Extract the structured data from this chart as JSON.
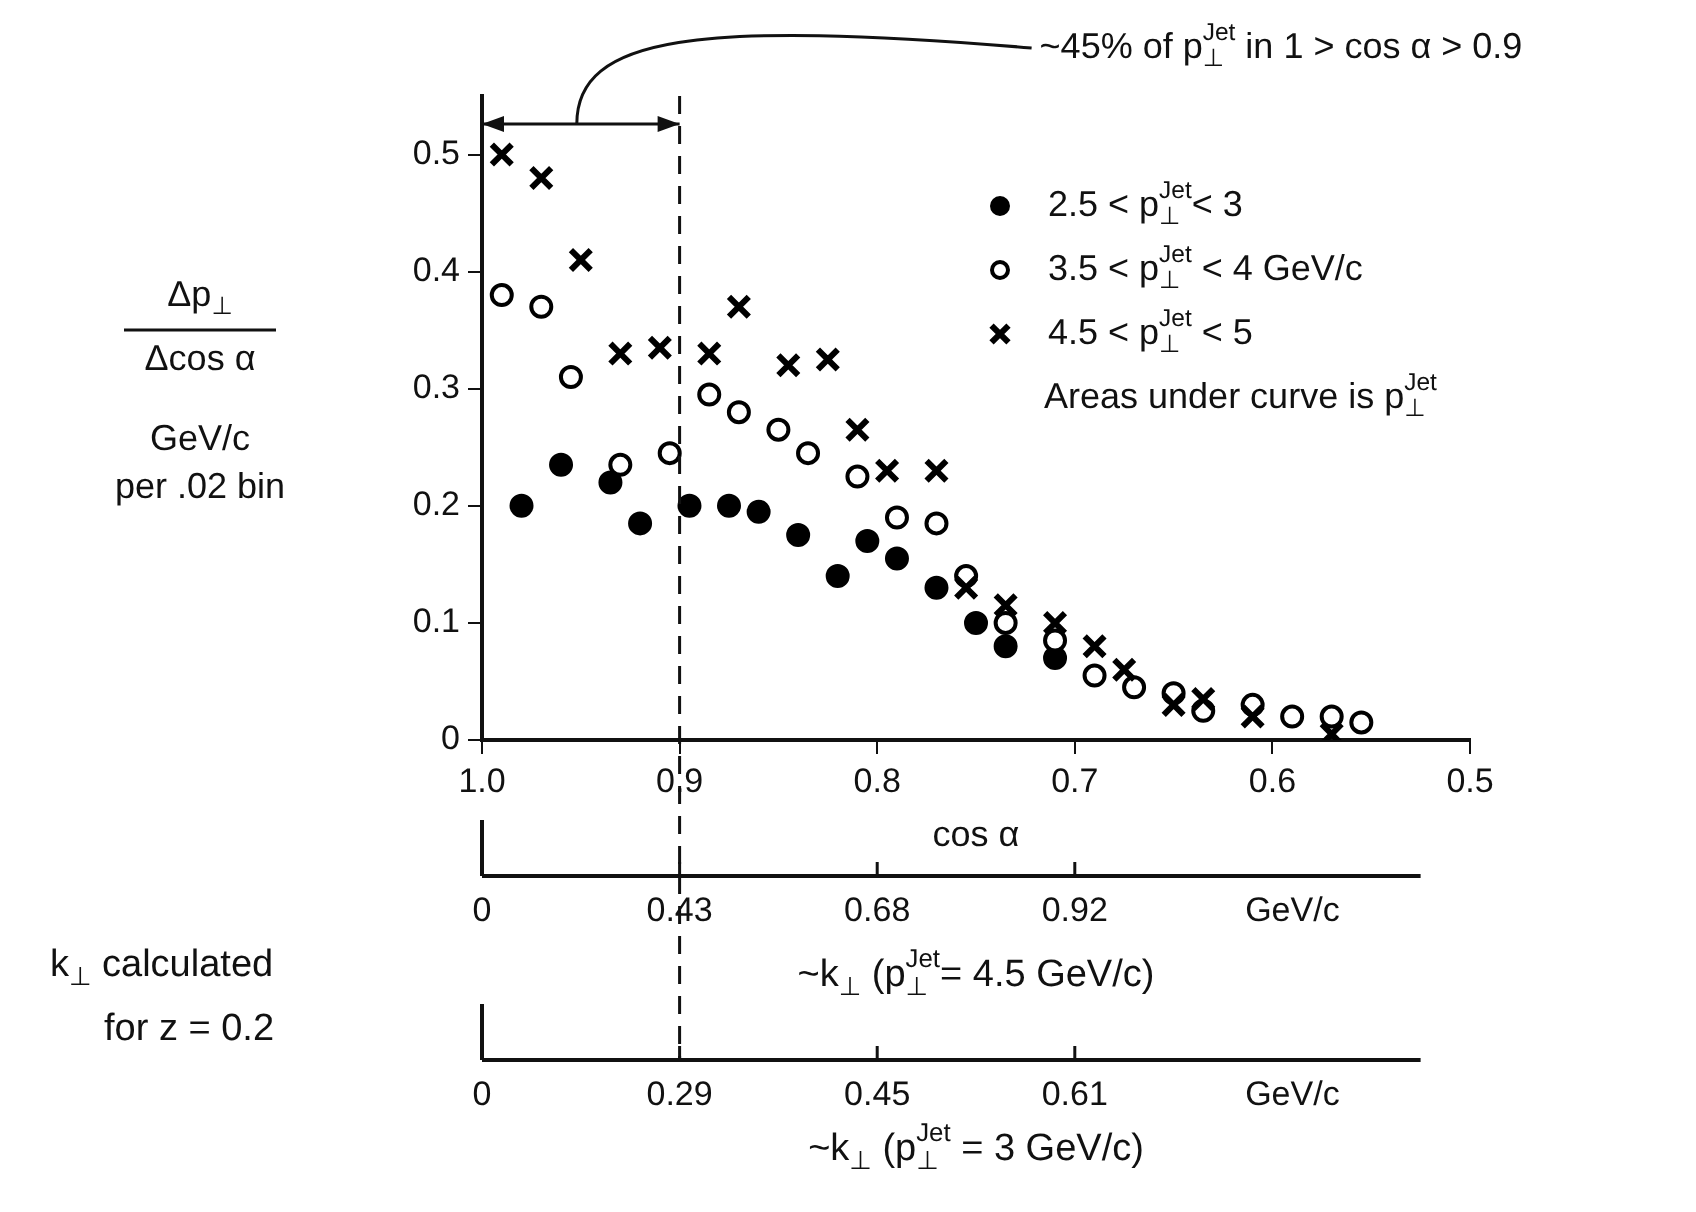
{
  "chart_data": {
    "type": "scatter",
    "ylabel": "Δp$_{⊥}$\nΔcos α\nGeV/c\nper .02 bin",
    "xlabel": "cos α",
    "xlim": [
      1.0,
      0.5
    ],
    "xticks": [
      {
        "value": 1.0,
        "label": "1.0"
      },
      0.9,
      0.8,
      0.7,
      0.6,
      0.5
    ],
    "ylim": [
      0,
      0.55
    ],
    "yticks": [
      0,
      0.1,
      0.2,
      0.3,
      0.4,
      0.5
    ],
    "grid": false,
    "legend": "top right",
    "ref_lines": [
      {
        "axis": "x",
        "value": 0.9,
        "line_style": "dashed"
      }
    ],
    "annotations": [
      "~45% of p$_{⊥}$$^{Jet}$ in 1 > cos α > 0.9",
      "Areas under curve is p$_{⊥}$$^{Jet}$",
      "k$_{⊥}$ calculated\nfor z = 0.2",
      "0",
      "0.43",
      "0.68",
      "0.92",
      "GeV/c",
      "~k$_{⊥}$ (p$_{⊥}$$^{Jet}$= 4.5 GeV/c)",
      "0",
      "0.29",
      "0.45",
      "0.61",
      "GeV/c",
      "~k$_{⊥}$ (p$_{⊥}$$^{Jet}$ = 3 GeV/c)"
    ],
    "series": [
      {
        "name": "2.5 < p$_{⊥}$$^{Jet}$< 3",
        "color": "#000000",
        "marker": "circle",
        "x": [
          0.98,
          0.96,
          0.935,
          0.92,
          0.895,
          0.875,
          0.86,
          0.84,
          0.82,
          0.805,
          0.79,
          0.77,
          0.75,
          0.735,
          0.71
        ],
        "values": [
          0.2,
          0.235,
          0.22,
          0.185,
          0.2,
          0.2,
          0.195,
          0.175,
          0.14,
          0.17,
          0.155,
          0.13,
          0.1,
          0.08,
          0.07
        ]
      },
      {
        "name": "3.5 < p$_{⊥}$$^{Jet}$ < 4 GeV/c",
        "color": "#000000",
        "marker": "circle",
        "x": [
          0.99,
          0.97,
          0.955,
          0.93,
          0.905,
          0.885,
          0.87,
          0.85,
          0.835,
          0.81,
          0.79,
          0.77,
          0.755,
          0.735,
          0.71,
          0.69,
          0.67,
          0.65,
          0.635,
          0.61,
          0.59,
          0.57,
          0.555
        ],
        "values": [
          0.38,
          0.37,
          0.31,
          0.235,
          0.245,
          0.295,
          0.28,
          0.265,
          0.245,
          0.225,
          0.19,
          0.185,
          0.14,
          0.1,
          0.085,
          0.055,
          0.045,
          0.04,
          0.025,
          0.03,
          0.02,
          0.02,
          0.015
        ]
      },
      {
        "name": "4.5 < p$_{⊥}$$^{Jet}$ < 5",
        "color": "#000000",
        "marker": "cross",
        "x": [
          0.99,
          0.97,
          0.95,
          0.93,
          0.91,
          0.885,
          0.87,
          0.845,
          0.825,
          0.81,
          0.795,
          0.77,
          0.755,
          0.735,
          0.71,
          0.69,
          0.675,
          0.65,
          0.635,
          0.61,
          0.57
        ],
        "values": [
          0.5,
          0.48,
          0.41,
          0.33,
          0.335,
          0.33,
          0.37,
          0.32,
          0.325,
          0.265,
          0.23,
          0.23,
          0.13,
          0.115,
          0.1,
          0.08,
          0.06,
          0.03,
          0.035,
          0.02,
          0.005
        ]
      }
    ]
  }
}
